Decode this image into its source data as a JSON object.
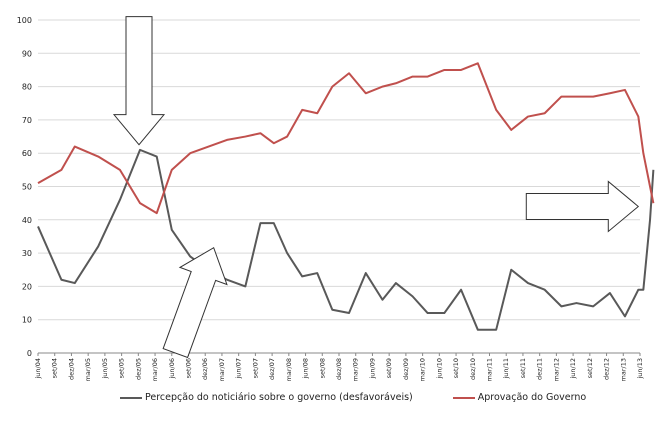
{
  "chart_data": {
    "type": "line",
    "title": "",
    "xlabel": "",
    "ylabel": "",
    "ylim": [
      0,
      100
    ],
    "yticks": [
      0,
      10,
      20,
      30,
      40,
      50,
      60,
      70,
      80,
      90,
      100
    ],
    "grid": true,
    "legend_position": "bottom",
    "categories": [
      "jun/04",
      "set/04",
      "dez/04",
      "mar/05",
      "jun/05",
      "set/05",
      "dez/05",
      "mar/06",
      "jun/06",
      "set/06",
      "dez/06",
      "mar/07",
      "jun/07",
      "set/07",
      "dez/07",
      "mar/08",
      "jun/08",
      "set/08",
      "dez/08",
      "mar/09",
      "jun/09",
      "set/09",
      "dez/09",
      "mar/10",
      "jun/10",
      "set/10",
      "dez/10",
      "mar/11",
      "jun/11",
      "set/11",
      "dez/11",
      "mar/12",
      "jun/12",
      "set/12",
      "dez/12",
      "mar/13",
      "jun/13"
    ],
    "x": [
      0,
      1.4,
      2.2,
      3.6,
      4.9,
      6.1,
      7.1,
      8.0,
      9.1,
      10.2,
      11.3,
      12.4,
      13.3,
      14.1,
      14.9,
      15.8,
      16.7,
      17.6,
      18.6,
      19.6,
      20.6,
      21.4,
      22.4,
      23.3,
      24.3,
      25.3,
      26.3,
      27.4,
      28.3,
      29.3,
      30.3,
      31.3,
      32.2,
      33.2,
      34.2,
      35.1,
      35.9,
      36.2,
      36.6,
      36.8
    ],
    "series": [
      {
        "name": "Percepção do noticiário sobre o governo (desfavoráveis)",
        "color": "#595959",
        "values": [
          38,
          22,
          21,
          32,
          46,
          61,
          59,
          37,
          29,
          25,
          22,
          20,
          39,
          39,
          30,
          23,
          24,
          13,
          12,
          24,
          16,
          21,
          17,
          12,
          12,
          19,
          7,
          7,
          25,
          21,
          19,
          14,
          15,
          14,
          18,
          11,
          19,
          19,
          40,
          55
        ]
      },
      {
        "name": "Aprovação do Governo",
        "color": "#c0504d",
        "values": [
          51,
          55,
          62,
          59,
          55,
          45,
          42,
          55,
          60,
          62,
          64,
          65,
          66,
          63,
          65,
          73,
          72,
          80,
          84,
          78,
          80,
          81,
          83,
          83,
          85,
          85,
          87,
          73,
          67,
          71,
          72,
          77,
          77,
          77,
          78,
          79,
          71,
          60,
          50,
          45
        ]
      }
    ],
    "annotations": [
      {
        "shape": "arrow",
        "direction": "down",
        "near_x": "set/05",
        "near_y": 75
      },
      {
        "shape": "arrow",
        "direction": "up",
        "near_x": "jun/07",
        "near_y": 20
      },
      {
        "shape": "arrow",
        "direction": "right",
        "near_x": "mar/12",
        "near_y": 44
      }
    ]
  },
  "legend": {
    "series1_label": "Percepção do noticiário sobre o governo (desfavoráveis)",
    "series2_label": "Aprovação do Governo",
    "series1_color": "#595959",
    "series2_color": "#c0504d"
  }
}
